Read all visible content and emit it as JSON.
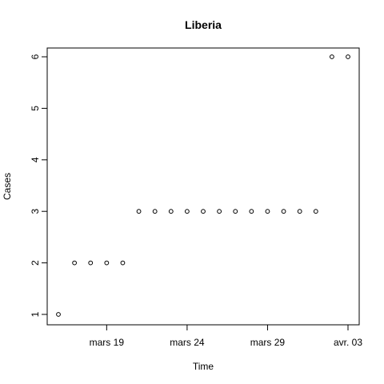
{
  "chart_data": {
    "type": "scatter",
    "title": "Liberia",
    "xlabel": "Time",
    "ylabel": "Cases",
    "xlim": [
      "2020-03-16",
      "2020-04-03"
    ],
    "ylim": [
      1,
      6
    ],
    "x_ticks": [
      {
        "date": "2020-03-19",
        "label": "mars 19"
      },
      {
        "date": "2020-03-24",
        "label": "mars 24"
      },
      {
        "date": "2020-03-29",
        "label": "mars 29"
      },
      {
        "date": "2020-04-03",
        "label": "avr. 03"
      }
    ],
    "y_ticks": [
      1,
      2,
      3,
      4,
      5,
      6
    ],
    "grid": false,
    "points": [
      {
        "x": "2020-03-16",
        "y": 1
      },
      {
        "x": "2020-03-17",
        "y": 2
      },
      {
        "x": "2020-03-18",
        "y": 2
      },
      {
        "x": "2020-03-19",
        "y": 2
      },
      {
        "x": "2020-03-20",
        "y": 2
      },
      {
        "x": "2020-03-21",
        "y": 3
      },
      {
        "x": "2020-03-22",
        "y": 3
      },
      {
        "x": "2020-03-23",
        "y": 3
      },
      {
        "x": "2020-03-24",
        "y": 3
      },
      {
        "x": "2020-03-25",
        "y": 3
      },
      {
        "x": "2020-03-26",
        "y": 3
      },
      {
        "x": "2020-03-27",
        "y": 3
      },
      {
        "x": "2020-03-28",
        "y": 3
      },
      {
        "x": "2020-03-29",
        "y": 3
      },
      {
        "x": "2020-03-30",
        "y": 3
      },
      {
        "x": "2020-03-31",
        "y": 3
      },
      {
        "x": "2020-04-01",
        "y": 3
      },
      {
        "x": "2020-04-02",
        "y": 6
      },
      {
        "x": "2020-04-03",
        "y": 6
      }
    ],
    "point_color": "#000000"
  }
}
